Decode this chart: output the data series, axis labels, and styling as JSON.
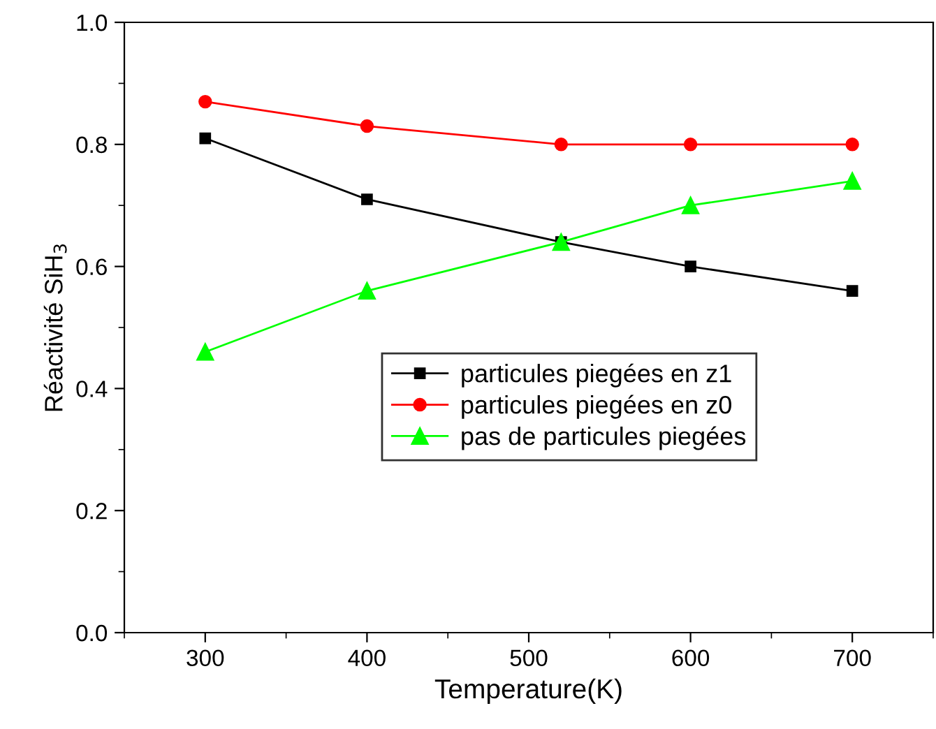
{
  "chart_data": {
    "type": "line",
    "xlabel": "Temperature(K)",
    "ylabel": "Réactivité SiH$_{3}$",
    "x": [
      300,
      400,
      520,
      600,
      700
    ],
    "series": [
      {
        "name": "particules piegées en z1",
        "color": "#000000",
        "marker": "square",
        "values": [
          0.81,
          0.71,
          0.64,
          0.6,
          0.56
        ]
      },
      {
        "name": "particules piegées en z0",
        "color": "#ff0000",
        "marker": "circle",
        "values": [
          0.87,
          0.83,
          0.8,
          0.8,
          0.8
        ]
      },
      {
        "name": "pas de particules piegées",
        "color": "#00ff00",
        "marker": "triangle",
        "values": [
          0.46,
          0.56,
          0.64,
          0.7,
          0.74
        ]
      }
    ],
    "xlim": [
      250,
      750
    ],
    "xticks": [
      300,
      400,
      500,
      600,
      700
    ],
    "ylim": [
      0.0,
      1.0
    ],
    "yticks": [
      {
        "value": 0.0,
        "label": "0.0"
      },
      {
        "value": 0.2,
        "label": "0.2"
      },
      {
        "value": 0.4,
        "label": "0.4"
      },
      {
        "value": 0.6,
        "label": "0.6"
      },
      {
        "value": 0.8,
        "label": "0.8"
      },
      {
        "value": 1.0,
        "label": "1.0"
      }
    ],
    "grid": false,
    "legend": "center",
    "line_style": "solid"
  }
}
